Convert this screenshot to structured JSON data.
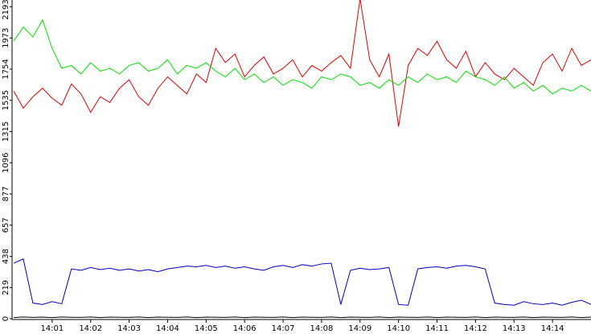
{
  "chart_data": {
    "type": "line",
    "x": [
      0,
      0.25,
      0.5,
      0.75,
      1,
      1.25,
      1.5,
      1.75,
      2,
      2.25,
      2.5,
      2.75,
      3,
      3.25,
      3.5,
      3.75,
      4,
      4.25,
      4.5,
      4.75,
      5,
      5.25,
      5.5,
      5.75,
      6,
      6.25,
      6.5,
      6.75,
      7,
      7.25,
      7.5,
      7.75,
      8,
      8.25,
      8.5,
      8.75,
      9,
      9.25,
      9.5,
      9.75,
      10,
      10.25,
      10.5,
      10.75,
      11,
      11.25,
      11.5,
      11.75,
      12,
      12.25,
      12.5,
      12.75,
      13,
      13.25,
      13.5,
      13.75,
      14,
      14.25,
      14.5,
      14.75,
      15
    ],
    "series": [
      {
        "color": "#e00000",
        "values": [
          1600,
          1480,
          1560,
          1620,
          1550,
          1500,
          1650,
          1580,
          1450,
          1560,
          1520,
          1620,
          1680,
          1560,
          1500,
          1620,
          1700,
          1640,
          1580,
          1720,
          1660,
          1900,
          1800,
          1860,
          1700,
          1780,
          1840,
          1720,
          1760,
          1820,
          1700,
          1780,
          1740,
          1800,
          1850,
          1760,
          2250,
          1820,
          1700,
          1860,
          1350,
          1780,
          1900,
          1850,
          1950,
          1820,
          1760,
          1880,
          1700,
          1800,
          1720,
          1680,
          1760,
          1700,
          1640,
          1800,
          1860,
          1740,
          1900,
          1780,
          1820
        ]
      },
      {
        "color": "#00e000",
        "values": [
          1950,
          2050,
          1980,
          2100,
          1900,
          1760,
          1780,
          1720,
          1800,
          1740,
          1760,
          1720,
          1780,
          1800,
          1740,
          1760,
          1820,
          1720,
          1780,
          1760,
          1800,
          1740,
          1700,
          1760,
          1680,
          1720,
          1660,
          1700,
          1640,
          1680,
          1660,
          1620,
          1700,
          1680,
          1720,
          1700,
          1640,
          1660,
          1620,
          1680,
          1640,
          1700,
          1660,
          1720,
          1680,
          1700,
          1660,
          1740,
          1700,
          1680,
          1640,
          1700,
          1620,
          1660,
          1600,
          1640,
          1580,
          1620,
          1600,
          1640,
          1600
        ]
      },
      {
        "color": "#0000c0",
        "values": [
          390,
          420,
          110,
          100,
          120,
          105,
          350,
          340,
          360,
          345,
          355,
          340,
          350,
          335,
          345,
          330,
          350,
          360,
          370,
          365,
          375,
          360,
          370,
          355,
          365,
          350,
          340,
          365,
          375,
          360,
          380,
          370,
          385,
          390,
          100,
          340,
          355,
          345,
          350,
          360,
          100,
          95,
          350,
          360,
          365,
          355,
          370,
          375,
          365,
          350,
          110,
          100,
          95,
          120,
          105,
          100,
          110,
          95,
          115,
          130,
          100
        ]
      },
      {
        "color": "#000000",
        "values": [
          8,
          12,
          9,
          11,
          8,
          12,
          10,
          9,
          12,
          8,
          11,
          10,
          9,
          12,
          8,
          11,
          10,
          9,
          12,
          8,
          11,
          10,
          9,
          12,
          8,
          11,
          10,
          9,
          12,
          8,
          11,
          10,
          9,
          12,
          8,
          11,
          10,
          9,
          12,
          8,
          11,
          10,
          9,
          12,
          8,
          11,
          10,
          9,
          12,
          8,
          11,
          10,
          9,
          12,
          8,
          11,
          10,
          9,
          12,
          8,
          11
        ]
      }
    ],
    "xlim": [
      0,
      15
    ],
    "xticks": [
      {
        "value": 1,
        "label": "14:01"
      },
      {
        "value": 2,
        "label": "14:02"
      },
      {
        "value": 3,
        "label": "14:03"
      },
      {
        "value": 4,
        "label": "14:04"
      },
      {
        "value": 5,
        "label": "14:05"
      },
      {
        "value": 6,
        "label": "14:06"
      },
      {
        "value": 7,
        "label": "14:07"
      },
      {
        "value": 8,
        "label": "14:08"
      },
      {
        "value": 9,
        "label": "14:09"
      },
      {
        "value": 10,
        "label": "14:10"
      },
      {
        "value": 11,
        "label": "14:11"
      },
      {
        "value": 12,
        "label": "14:12"
      },
      {
        "value": 13,
        "label": "14:13"
      },
      {
        "value": 14,
        "label": "14:14"
      }
    ],
    "ylim": [
      0,
      2240
    ],
    "yticks": [
      0,
      219,
      438,
      657,
      877,
      1096,
      1315,
      1535,
      1754,
      1973,
      2193
    ]
  }
}
